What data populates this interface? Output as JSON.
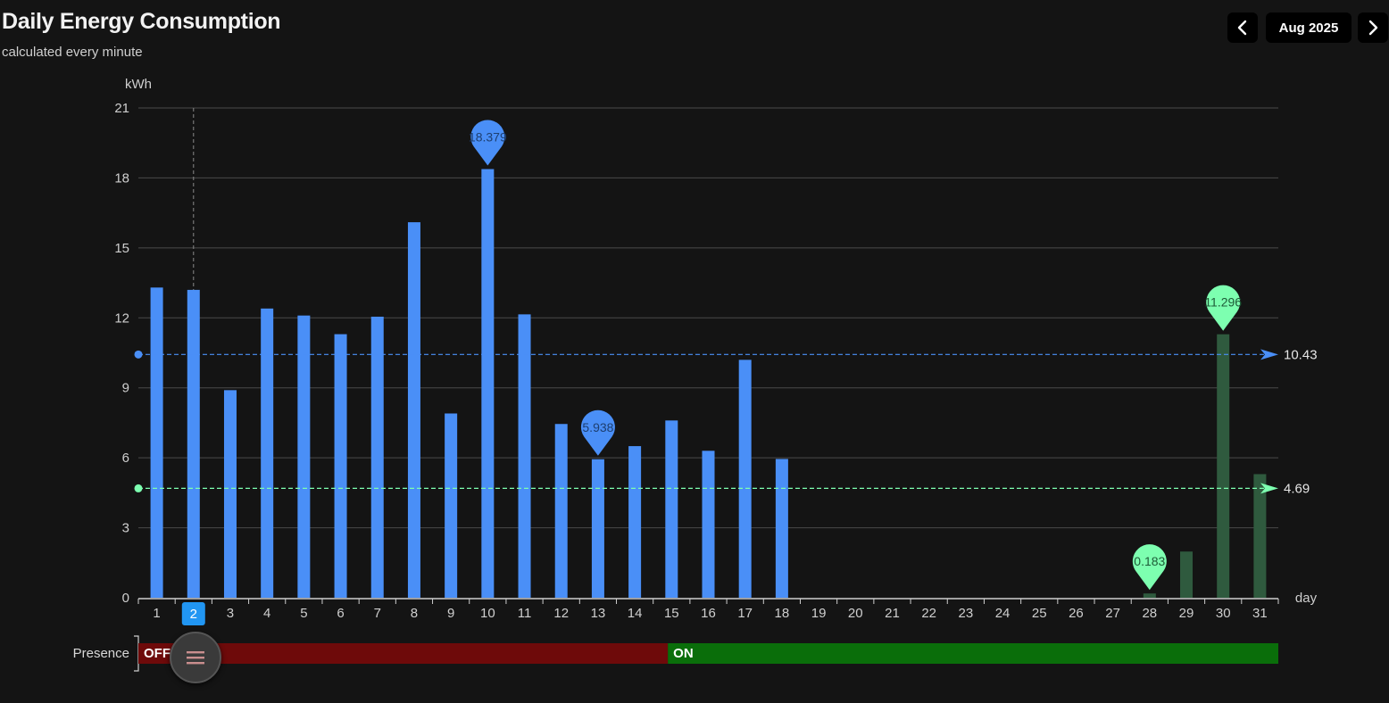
{
  "header": {
    "title": "Daily Energy Consumption",
    "subtitle": "calculated every minute",
    "month_label": "Aug 2025",
    "prev_icon": "chevron-left-icon",
    "next_icon": "chevron-right-icon"
  },
  "menu_icon": "menu-icon",
  "colors": {
    "background": "#141414",
    "series_main": "#4a8ff7",
    "series_secondary": "#2f5a3e",
    "avg_main": "#4a8ff7",
    "avg_secondary": "#7dffb0",
    "presence_off": "#6e0a0a",
    "presence_on": "#0a6e0a",
    "selected_tick": "#2196f3"
  },
  "chart_data": {
    "type": "bar",
    "ylabel": "kWh",
    "xlabel": "day",
    "ylim": [
      0,
      21
    ],
    "yticks": [
      0,
      3,
      6,
      9,
      12,
      15,
      18,
      21
    ],
    "categories": [
      "1",
      "2",
      "3",
      "4",
      "5",
      "6",
      "7",
      "8",
      "9",
      "10",
      "11",
      "12",
      "13",
      "14",
      "15",
      "16",
      "17",
      "18",
      "19",
      "20",
      "21",
      "22",
      "23",
      "24",
      "25",
      "26",
      "27",
      "28",
      "29",
      "30",
      "31"
    ],
    "selected_category": "2",
    "series": [
      {
        "key": "main",
        "values": [
          13.3,
          13.2,
          8.9,
          12.4,
          12.1,
          11.3,
          12.05,
          16.1,
          7.9,
          18.379,
          12.15,
          7.45,
          5.938,
          6.5,
          7.6,
          6.3,
          10.2,
          5.95,
          null,
          null,
          null,
          null,
          null,
          null,
          null,
          null,
          null,
          null,
          null,
          null,
          null
        ],
        "max_label": "18.379",
        "min_label": "5.938",
        "average": 10.43,
        "average_label": "10.43"
      },
      {
        "key": "secondary",
        "values": [
          null,
          null,
          null,
          null,
          null,
          null,
          null,
          null,
          null,
          null,
          null,
          null,
          null,
          null,
          null,
          null,
          null,
          null,
          null,
          null,
          null,
          null,
          null,
          null,
          null,
          null,
          null,
          0.183,
          1.98,
          11.296,
          5.3
        ],
        "max_label": "11.296",
        "min_label": "0.183",
        "average": 4.69,
        "average_label": "4.69"
      }
    ],
    "presence": {
      "label": "Presence",
      "segments": [
        {
          "state": "OFF",
          "start_day": 1,
          "end_day": 15.4
        },
        {
          "state": "ON",
          "start_day": 15.4,
          "end_day": 31
        }
      ]
    }
  }
}
